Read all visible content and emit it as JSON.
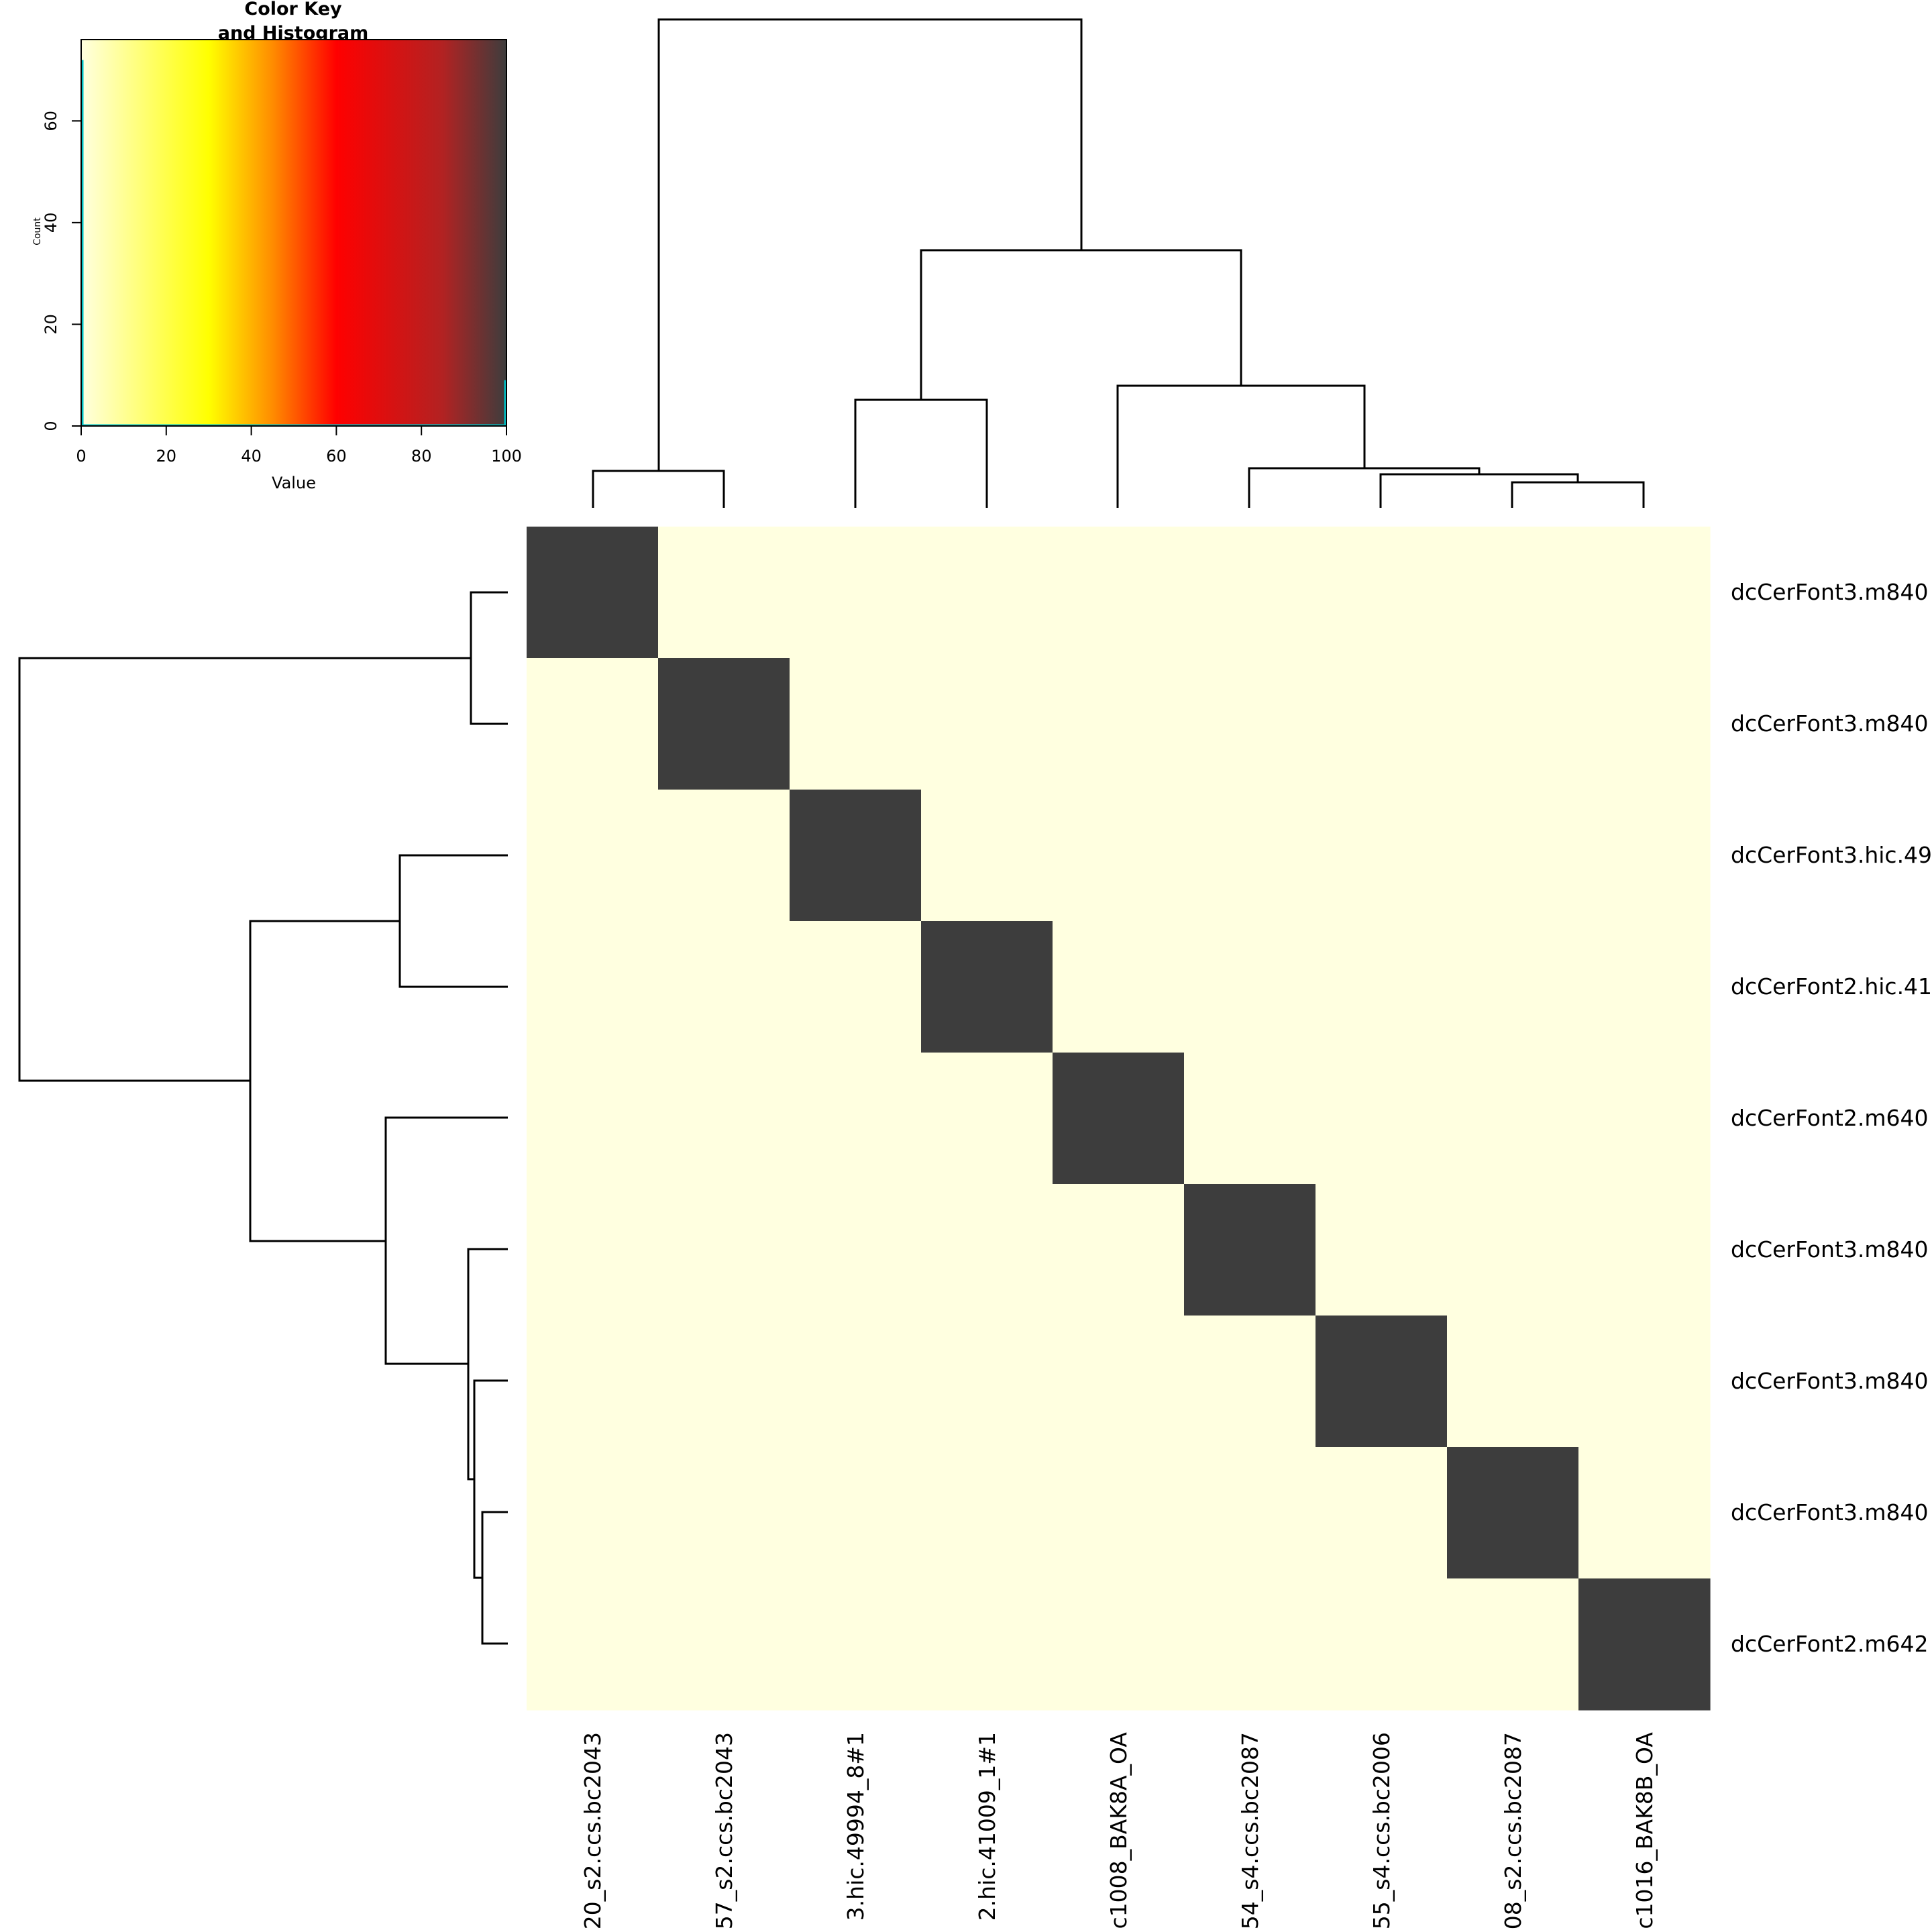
{
  "chart_data": {
    "type": "heatmap",
    "color_key": {
      "title_line1": "Color Key",
      "title_line2": "and Histogram",
      "xlabel": "Value",
      "ylabel": "Count",
      "x_ticks": [
        "0",
        "20",
        "40",
        "60",
        "80",
        "100"
      ],
      "y_ticks": [
        "0",
        "20",
        "40",
        "60"
      ],
      "xlim": [
        0,
        100
      ],
      "ylim": [
        0,
        76
      ],
      "histogram_line_color": "#00BFC4",
      "color_stops": [
        {
          "value": 0,
          "color": "#FFFFE0"
        },
        {
          "value": 30,
          "color": "#FFFF00"
        },
        {
          "value": 45,
          "color": "#FF8C00"
        },
        {
          "value": 60,
          "color": "#FF0000"
        },
        {
          "value": 85,
          "color": "#B22222"
        },
        {
          "value": 100,
          "color": "#3D3D3D"
        }
      ]
    },
    "row_labels": [
      "dcCerFont3.m840",
      "dcCerFont3.m840",
      "dcCerFont3.hic.49",
      "dcCerFont2.hic.41",
      "dcCerFont2.m640",
      "dcCerFont3.m840",
      "dcCerFont3.m840",
      "dcCerFont3.m840",
      "dcCerFont2.m642"
    ],
    "col_labels": [
      "20_s2.ccs.bc2043",
      "57_s2.ccs.bc2043",
      "3.hic.49994_8#1",
      "2.hic.41009_1#1",
      "c1008_BAK8A_OA",
      "54_s4.ccs.bc2087",
      "55_s4.ccs.bc2006",
      "08_s2.ccs.bc2087",
      "c1016_BAK8B_OA"
    ],
    "matrix": [
      [
        100,
        0,
        0,
        0,
        0,
        0,
        0,
        0,
        0
      ],
      [
        0,
        100,
        0,
        0,
        0,
        0,
        0,
        0,
        0
      ],
      [
        0,
        0,
        100,
        0,
        0,
        0,
        0,
        0,
        0
      ],
      [
        0,
        0,
        0,
        100,
        0,
        0,
        0,
        0,
        0
      ],
      [
        0,
        0,
        0,
        0,
        100,
        0,
        0,
        0,
        0
      ],
      [
        0,
        0,
        0,
        0,
        0,
        100,
        0,
        0,
        0
      ],
      [
        0,
        0,
        0,
        0,
        0,
        0,
        100,
        0,
        0
      ],
      [
        0,
        0,
        0,
        0,
        0,
        0,
        0,
        100,
        0
      ],
      [
        0,
        0,
        0,
        0,
        0,
        0,
        0,
        0,
        100
      ]
    ],
    "low_color": "#FFFFE0",
    "high_color": "#3D3D3D"
  }
}
